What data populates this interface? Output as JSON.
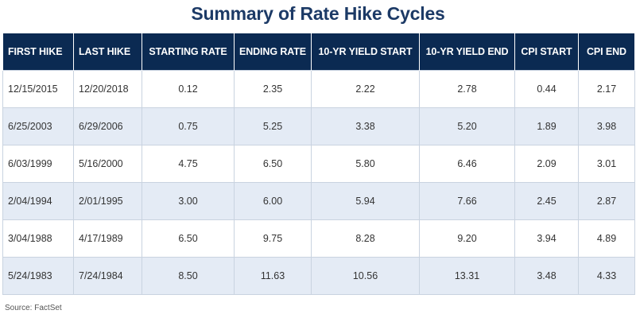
{
  "title": "Summary of Rate Hike Cycles",
  "source": "Source: FactSet",
  "table": {
    "headers": [
      "FIRST HIKE",
      "LAST HIKE",
      "STARTING RATE",
      "ENDING RATE",
      "10-YR YIELD START",
      "10-YR YIELD END",
      "CPI START",
      "CPI END"
    ],
    "rows": [
      [
        "12/15/2015",
        "12/20/2018",
        "0.12",
        "2.35",
        "2.22",
        "2.78",
        "0.44",
        "2.17"
      ],
      [
        "6/25/2003",
        "6/29/2006",
        "0.75",
        "5.25",
        "3.38",
        "5.20",
        "1.89",
        "3.98"
      ],
      [
        "6/03/1999",
        "5/16/2000",
        "4.75",
        "6.50",
        "5.80",
        "6.46",
        "2.09",
        "3.01"
      ],
      [
        "2/04/1994",
        "2/01/1995",
        "3.00",
        "6.00",
        "5.94",
        "7.66",
        "2.45",
        "2.87"
      ],
      [
        "3/04/1988",
        "4/17/1989",
        "6.50",
        "9.75",
        "8.28",
        "9.20",
        "3.94",
        "4.89"
      ],
      [
        "5/24/1983",
        "7/24/1984",
        "8.50",
        "11.63",
        "10.56",
        "13.31",
        "3.48",
        "4.33"
      ]
    ]
  },
  "colors": {
    "title": "#1c3a66",
    "header_bg": "#0b2a52",
    "alt_row_bg": "#e4ebf5"
  }
}
